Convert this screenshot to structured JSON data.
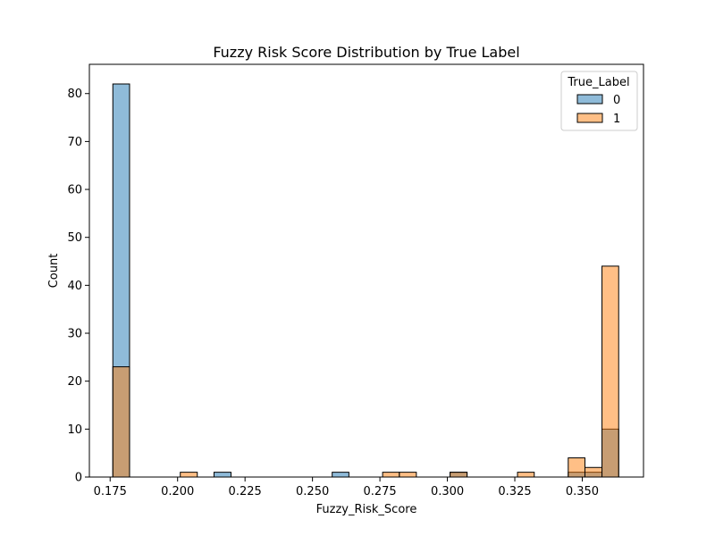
{
  "chart_data": {
    "type": "bar",
    "title": "Fuzzy Risk Score Distribution by True Label",
    "xlabel": "Fuzzy_Risk_Score",
    "ylabel": "Count",
    "xlim": [
      0.1673,
      0.3727
    ],
    "ylim": [
      0,
      86.1
    ],
    "x_ticks": [
      0.175,
      0.2,
      0.225,
      0.25,
      0.275,
      0.3,
      0.325,
      0.35
    ],
    "x_tick_labels": [
      "0.175",
      "0.200",
      "0.225",
      "0.250",
      "0.275",
      "0.300",
      "0.325",
      "0.350"
    ],
    "y_ticks": [
      0,
      10,
      20,
      30,
      40,
      50,
      60,
      70,
      80
    ],
    "y_tick_labels": [
      "0",
      "10",
      "20",
      "30",
      "40",
      "50",
      "60",
      "70",
      "80"
    ],
    "grid": false,
    "legend_title": "True_Label",
    "legend_position": "top-right",
    "bin_edges": [
      0.176,
      0.1822,
      0.1885,
      0.1948,
      0.201,
      0.2073,
      0.2135,
      0.2198,
      0.226,
      0.2322,
      0.2385,
      0.2448,
      0.251,
      0.2573,
      0.2635,
      0.2698,
      0.276,
      0.2822,
      0.2885,
      0.2948,
      0.301,
      0.3073,
      0.3135,
      0.3198,
      0.326,
      0.3322,
      0.3385,
      0.3448,
      0.351,
      0.3573,
      0.3635
    ],
    "series": [
      {
        "name": "0",
        "color": "#1f77b4",
        "fill": "rgba(31,119,180,0.5)",
        "values": [
          82,
          0,
          0,
          0,
          0,
          0,
          1,
          0,
          0,
          0,
          0,
          0,
          0,
          1,
          0,
          0,
          0,
          0,
          0,
          0,
          1,
          0,
          0,
          0,
          0,
          0,
          0,
          1,
          1,
          10
        ]
      },
      {
        "name": "1",
        "color": "#ff7f0e",
        "fill": "rgba(255,127,14,0.5)",
        "values": [
          23,
          0,
          0,
          0,
          1,
          0,
          0,
          0,
          0,
          0,
          0,
          0,
          0,
          0,
          0,
          0,
          1,
          1,
          0,
          0,
          1,
          0,
          0,
          0,
          1,
          0,
          0,
          4,
          2,
          44
        ]
      }
    ]
  }
}
